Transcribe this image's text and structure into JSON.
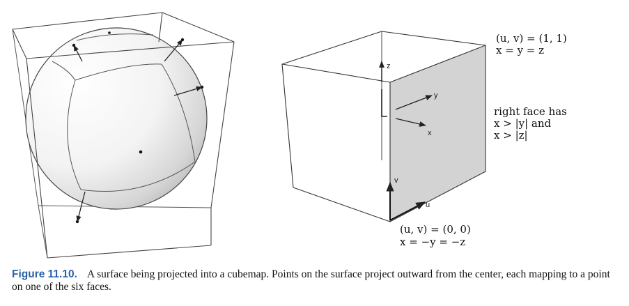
{
  "figure": {
    "label": "Figure 11.10.",
    "caption": "A surface being projected into a cubemap. Points on the surface project outward from the center, each mapping to a point on one of the six faces."
  },
  "left_panel": {
    "name": "sphere inside cube with outward projection arrows"
  },
  "right_panel": {
    "axis_labels": {
      "z": "z",
      "y": "y",
      "x": "x",
      "v": "v",
      "u": "u"
    },
    "top_corner": {
      "uv": "(u, v) = (1, 1)",
      "xyz": "x = y = z"
    },
    "face_condition": {
      "line1": "right face has",
      "line2": "x > |y| and",
      "line3": "x > |z|"
    },
    "bottom_corner": {
      "uv": "(u, v) = (0, 0)",
      "xyz": "x = −y = −z"
    }
  },
  "colors": {
    "caption_label": "#2a61a8",
    "right_face_fill": "#d3d3d3",
    "line": "#333333"
  }
}
